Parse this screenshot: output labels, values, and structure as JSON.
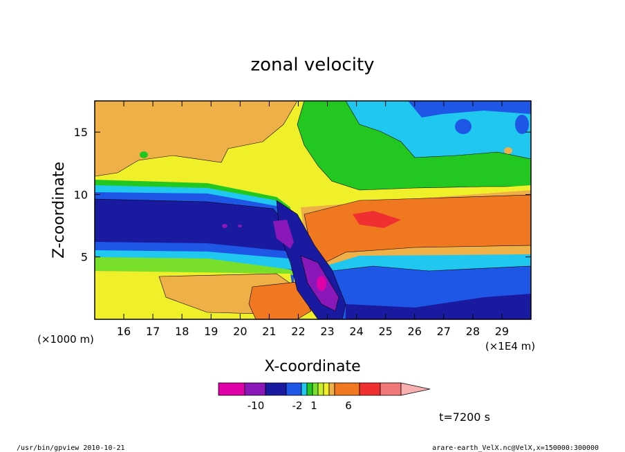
{
  "chart_data": {
    "type": "heatmap",
    "title": "zonal velocity",
    "xlabel": "X-coordinate",
    "ylabel": "Z-coordinate",
    "x_scale_label": "(×1E4 m)",
    "y_scale_label": "(×1000 m)",
    "xlim": [
      15,
      30
    ],
    "ylim": [
      0,
      17.5
    ],
    "x_ticks": [
      "16",
      "17",
      "18",
      "19",
      "20",
      "21",
      "22",
      "23",
      "24",
      "25",
      "26",
      "27",
      "28",
      "29"
    ],
    "y_ticks": [
      "5",
      "10",
      "15"
    ],
    "colorbar": {
      "colors": [
        "#e000a8",
        "#8a18b8",
        "#1a1aa0",
        "#1e56e6",
        "#20c8f0",
        "#22c820",
        "#78e02a",
        "#c8f02a",
        "#f0f02a",
        "#f0b048",
        "#f07820",
        "#f03030",
        "#f07878",
        "#f8b0b0"
      ],
      "labels": [
        "-10",
        "-2",
        "1",
        "6"
      ]
    },
    "annotation_time": "t=7200 s",
    "footer_left": "/usr/bin/gpview   2010-10-21",
    "footer_right": "arare-earth_VelX.nc@VelX,x=150000:300000"
  }
}
